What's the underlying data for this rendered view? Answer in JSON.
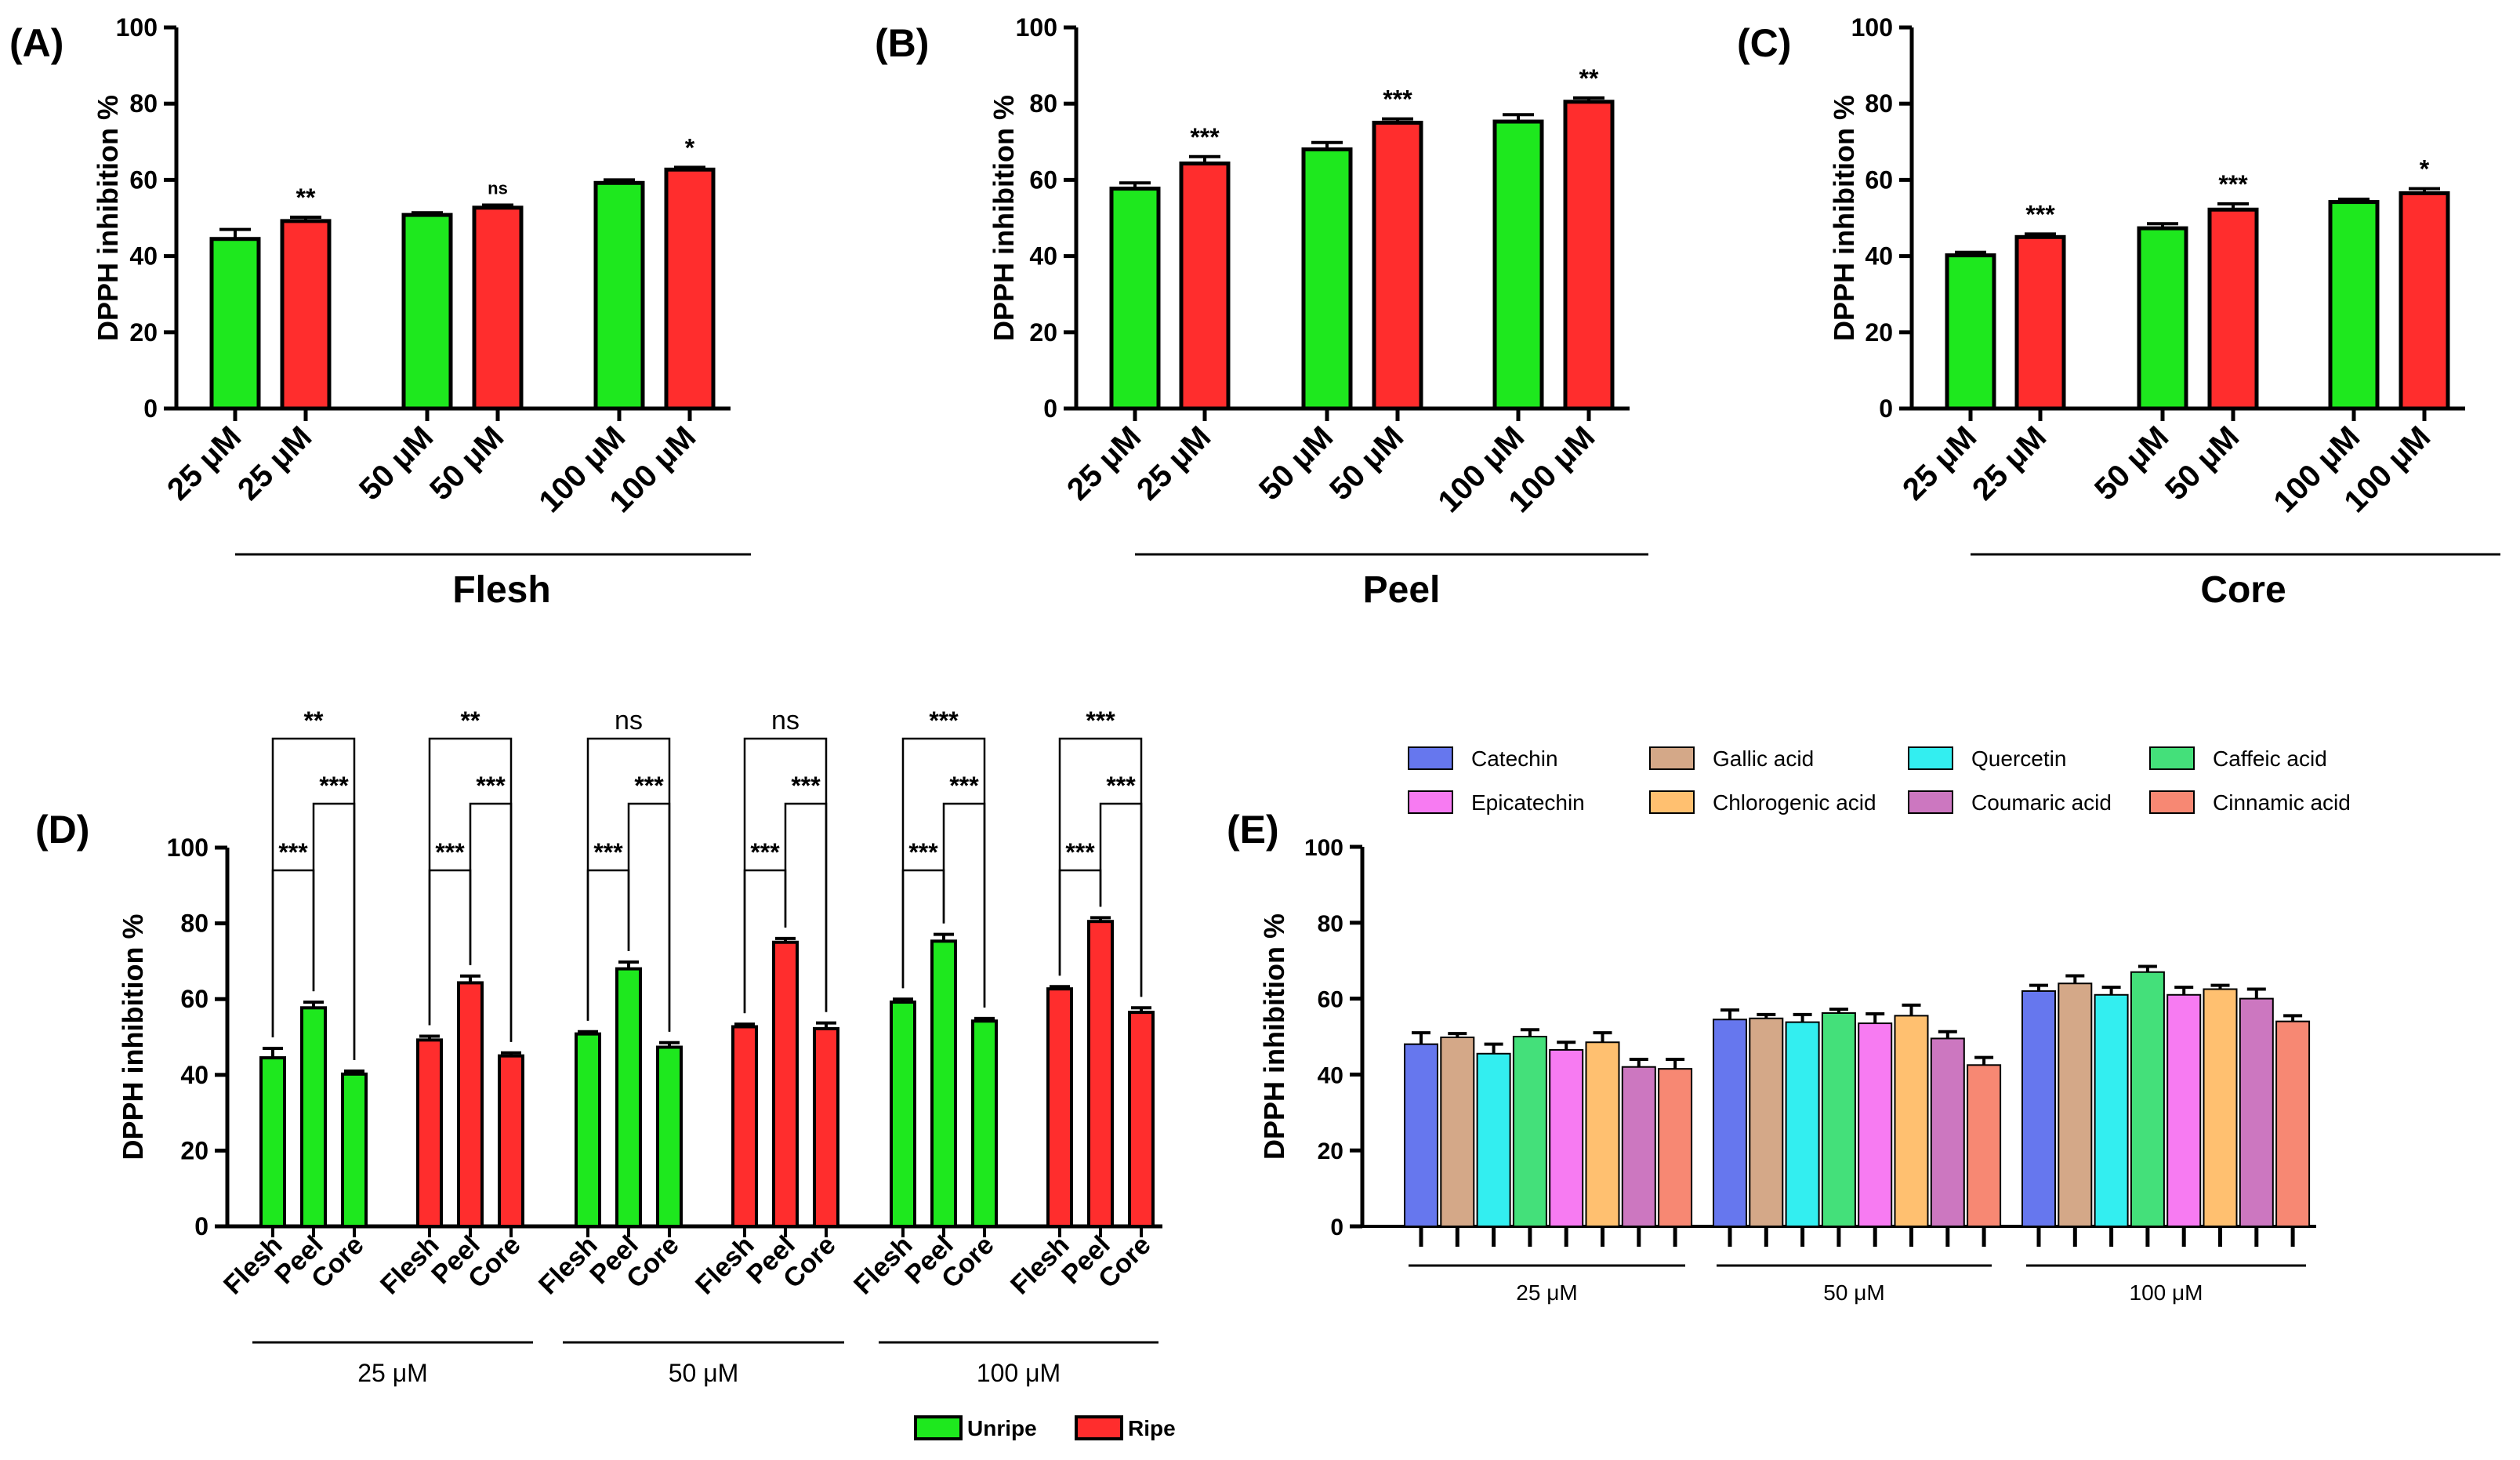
{
  "colors": {
    "unripe": "#1ee81e",
    "ripe": "#ff2d2d",
    "axis": "#000000"
  },
  "chart_data": [
    {
      "panel": "(A)",
      "type": "bar",
      "title": "Flesh",
      "ylabel": "DPPH inhibition %",
      "ylim": [
        0,
        100
      ],
      "yticks": [
        "0",
        "20",
        "40",
        "60",
        "80",
        "100"
      ],
      "categories": [
        "25 μM",
        "25 μM",
        "50 μM",
        "50 μM",
        "100 μM",
        "100 μM"
      ],
      "values": [
        44.5,
        49.2,
        50.8,
        52.7,
        59.2,
        62.7
      ],
      "errors": [
        2.5,
        1.0,
        0.6,
        0.7,
        0.8,
        0.6
      ],
      "fill": [
        "unripe",
        "ripe",
        "unripe",
        "ripe",
        "unripe",
        "ripe"
      ],
      "annotations": [
        "",
        "**",
        "",
        "ns",
        "",
        "*"
      ],
      "group_label": "Flesh"
    },
    {
      "panel": "(B)",
      "type": "bar",
      "title": "Peel",
      "ylabel": "DPPH inhibition %",
      "ylim": [
        0,
        100
      ],
      "yticks": [
        "0",
        "20",
        "40",
        "60",
        "80",
        "100"
      ],
      "categories": [
        "25 μM",
        "25 μM",
        "50 μM",
        "50 μM",
        "100 μM",
        "100 μM"
      ],
      "values": [
        57.7,
        64.3,
        68.0,
        75.0,
        75.3,
        80.5
      ],
      "errors": [
        1.5,
        1.8,
        1.8,
        1.0,
        1.8,
        1.0
      ],
      "fill": [
        "unripe",
        "ripe",
        "unripe",
        "ripe",
        "unripe",
        "ripe"
      ],
      "annotations": [
        "",
        "***",
        "",
        "***",
        "",
        "**"
      ],
      "group_label": "Peel"
    },
    {
      "panel": "(C)",
      "type": "bar",
      "title": "Core",
      "ylabel": "DPPH inhibition %",
      "ylim": [
        0,
        100
      ],
      "yticks": [
        "0",
        "20",
        "40",
        "60",
        "80",
        "100"
      ],
      "categories": [
        "25 μM",
        "25 μM",
        "50 μM",
        "50 μM",
        "100 μM",
        "100 μM"
      ],
      "values": [
        40.2,
        45.0,
        47.3,
        52.2,
        54.2,
        56.5
      ],
      "errors": [
        0.8,
        0.8,
        1.2,
        1.5,
        0.7,
        1.2
      ],
      "fill": [
        "unripe",
        "ripe",
        "unripe",
        "ripe",
        "unripe",
        "ripe"
      ],
      "annotations": [
        "",
        "***",
        "",
        "***",
        "",
        "*"
      ],
      "group_label": "Core"
    },
    {
      "panel": "(D)",
      "type": "bar",
      "ylabel": "DPPH inhibition %",
      "ylim": [
        0,
        100
      ],
      "yticks": [
        "0",
        "20",
        "40",
        "60",
        "80",
        "100"
      ],
      "groups": [
        {
          "label": "25 μM",
          "clusters": [
            {
              "state": "unripe",
              "categories": [
                "Flesh",
                "Peel",
                "Core"
              ],
              "values": [
                44.5,
                57.7,
                40.2
              ],
              "errors": [
                2.5,
                1.5,
                0.8
              ],
              "sig": {
                "flesh_core": "**",
                "peel_core": "***",
                "flesh_peel": "***"
              }
            },
            {
              "state": "ripe",
              "categories": [
                "Flesh",
                "Peel",
                "Core"
              ],
              "values": [
                49.2,
                64.3,
                45.0
              ],
              "errors": [
                1.0,
                1.8,
                0.8
              ],
              "sig": {
                "flesh_core": "**",
                "peel_core": "***",
                "flesh_peel": "***"
              }
            }
          ]
        },
        {
          "label": "50 μM",
          "clusters": [
            {
              "state": "unripe",
              "categories": [
                "Flesh",
                "Peel",
                "Core"
              ],
              "values": [
                50.8,
                68.0,
                47.3
              ],
              "errors": [
                0.6,
                1.8,
                1.2
              ],
              "sig": {
                "flesh_core": "ns",
                "peel_core": "***",
                "flesh_peel": "***"
              }
            },
            {
              "state": "ripe",
              "categories": [
                "Flesh",
                "Peel",
                "Core"
              ],
              "values": [
                52.7,
                75.0,
                52.2
              ],
              "errors": [
                0.7,
                1.0,
                1.5
              ],
              "sig": {
                "flesh_core": "ns",
                "peel_core": "***",
                "flesh_peel": "***"
              }
            }
          ]
        },
        {
          "label": "100 μM",
          "clusters": [
            {
              "state": "unripe",
              "categories": [
                "Flesh",
                "Peel",
                "Core"
              ],
              "values": [
                59.2,
                75.3,
                54.2
              ],
              "errors": [
                0.8,
                1.8,
                0.7
              ],
              "sig": {
                "flesh_core": "***",
                "flesh_peel": "***",
                "peel_core": "***"
              }
            },
            {
              "state": "ripe",
              "categories": [
                "Flesh",
                "Peel",
                "Core"
              ],
              "values": [
                62.7,
                80.5,
                56.5
              ],
              "errors": [
                0.6,
                1.0,
                1.2
              ],
              "sig": {
                "flesh_core": "***",
                "peel_core": "***",
                "flesh_peel": "***"
              }
            }
          ]
        }
      ],
      "legend": [
        {
          "label": "Unripe",
          "key": "unripe"
        },
        {
          "label": "Ripe",
          "key": "ripe"
        }
      ]
    },
    {
      "panel": "(E)",
      "type": "bar",
      "ylabel": "DPPH inhibition %",
      "ylim": [
        0,
        100
      ],
      "yticks": [
        "0",
        "20",
        "40",
        "60",
        "80",
        "100"
      ],
      "categories": [
        "25 μM",
        "50 μM",
        "100 μM"
      ],
      "series": [
        {
          "name": "Catechin",
          "color": "#6677ee",
          "values": [
            48.0,
            54.5,
            62.0
          ],
          "errors": [
            3.0,
            2.5,
            1.5
          ]
        },
        {
          "name": "Gallic acid",
          "color": "#d4a888",
          "values": [
            49.8,
            54.8,
            64.0
          ],
          "errors": [
            1.0,
            1.0,
            2.0
          ]
        },
        {
          "name": "Quercetin",
          "color": "#33eef0",
          "values": [
            45.5,
            53.8,
            61.0
          ],
          "errors": [
            2.5,
            2.0,
            2.0
          ]
        },
        {
          "name": "Caffeic acid",
          "color": "#44e07a",
          "values": [
            50.0,
            56.2,
            67.0
          ],
          "errors": [
            1.8,
            1.0,
            1.5
          ]
        },
        {
          "name": "Epicatechin",
          "color": "#f77bf2",
          "values": [
            46.5,
            53.5,
            61.0
          ],
          "errors": [
            2.0,
            2.5,
            2.0
          ]
        },
        {
          "name": "Chlorogenic acid",
          "color": "#ffc070",
          "values": [
            48.5,
            55.5,
            62.5
          ],
          "errors": [
            2.5,
            2.8,
            1.0
          ]
        },
        {
          "name": "Coumaric acid",
          "color": "#cc77c0",
          "values": [
            42.0,
            49.5,
            60.0
          ],
          "errors": [
            2.0,
            1.8,
            2.5
          ]
        },
        {
          "name": "Cinnamic acid",
          "color": "#f78873",
          "values": [
            41.5,
            42.5,
            54.0
          ],
          "errors": [
            2.5,
            2.0,
            1.5
          ]
        }
      ]
    }
  ]
}
